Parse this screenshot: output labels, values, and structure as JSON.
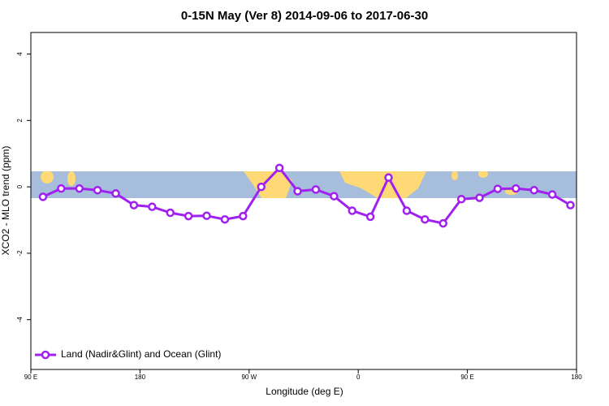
{
  "chart_data": {
    "type": "line",
    "title": "0-15N May (Ver 8)   2014-09-06 to 2017-06-30",
    "x_label": "Longitude (deg E)",
    "y_label": "XCO2 - MLO trend (ppm)",
    "x": [
      100,
      115,
      130,
      145,
      160,
      175,
      190,
      205,
      220,
      235,
      250,
      265,
      280,
      295,
      310,
      325,
      340,
      355,
      370,
      385,
      400,
      415,
      430,
      445,
      460,
      475,
      490,
      505,
      520,
      535
    ],
    "series": [
      {
        "name": "Land (Nadir&Glint) and Ocean (Glint)",
        "color": "#a020f0",
        "values": [
          -0.3,
          -0.05,
          -0.05,
          -0.1,
          -0.2,
          -0.55,
          -0.6,
          -0.78,
          -0.88,
          -0.87,
          -0.98,
          -0.88,
          0.0,
          0.57,
          -0.13,
          -0.08,
          -0.28,
          -0.72,
          -0.9,
          0.28,
          -0.72,
          -0.98,
          -1.1,
          -0.37,
          -0.33,
          -0.06,
          -0.05,
          -0.1,
          -0.23,
          -0.55
        ]
      }
    ],
    "xlim": [
      90,
      540
    ],
    "ylim": [
      -5.5,
      4.65
    ],
    "xticks": [
      {
        "value": 90,
        "label": "90 E"
      },
      180,
      {
        "value": 270,
        "label": "90 W"
      },
      {
        "value": 360,
        "label": "0"
      },
      {
        "value": 450,
        "label": "90 E"
      },
      {
        "value": 540,
        "label": "180"
      }
    ],
    "yticks": [
      -4,
      -2,
      0,
      2,
      4
    ],
    "legend": "bottom-left"
  }
}
